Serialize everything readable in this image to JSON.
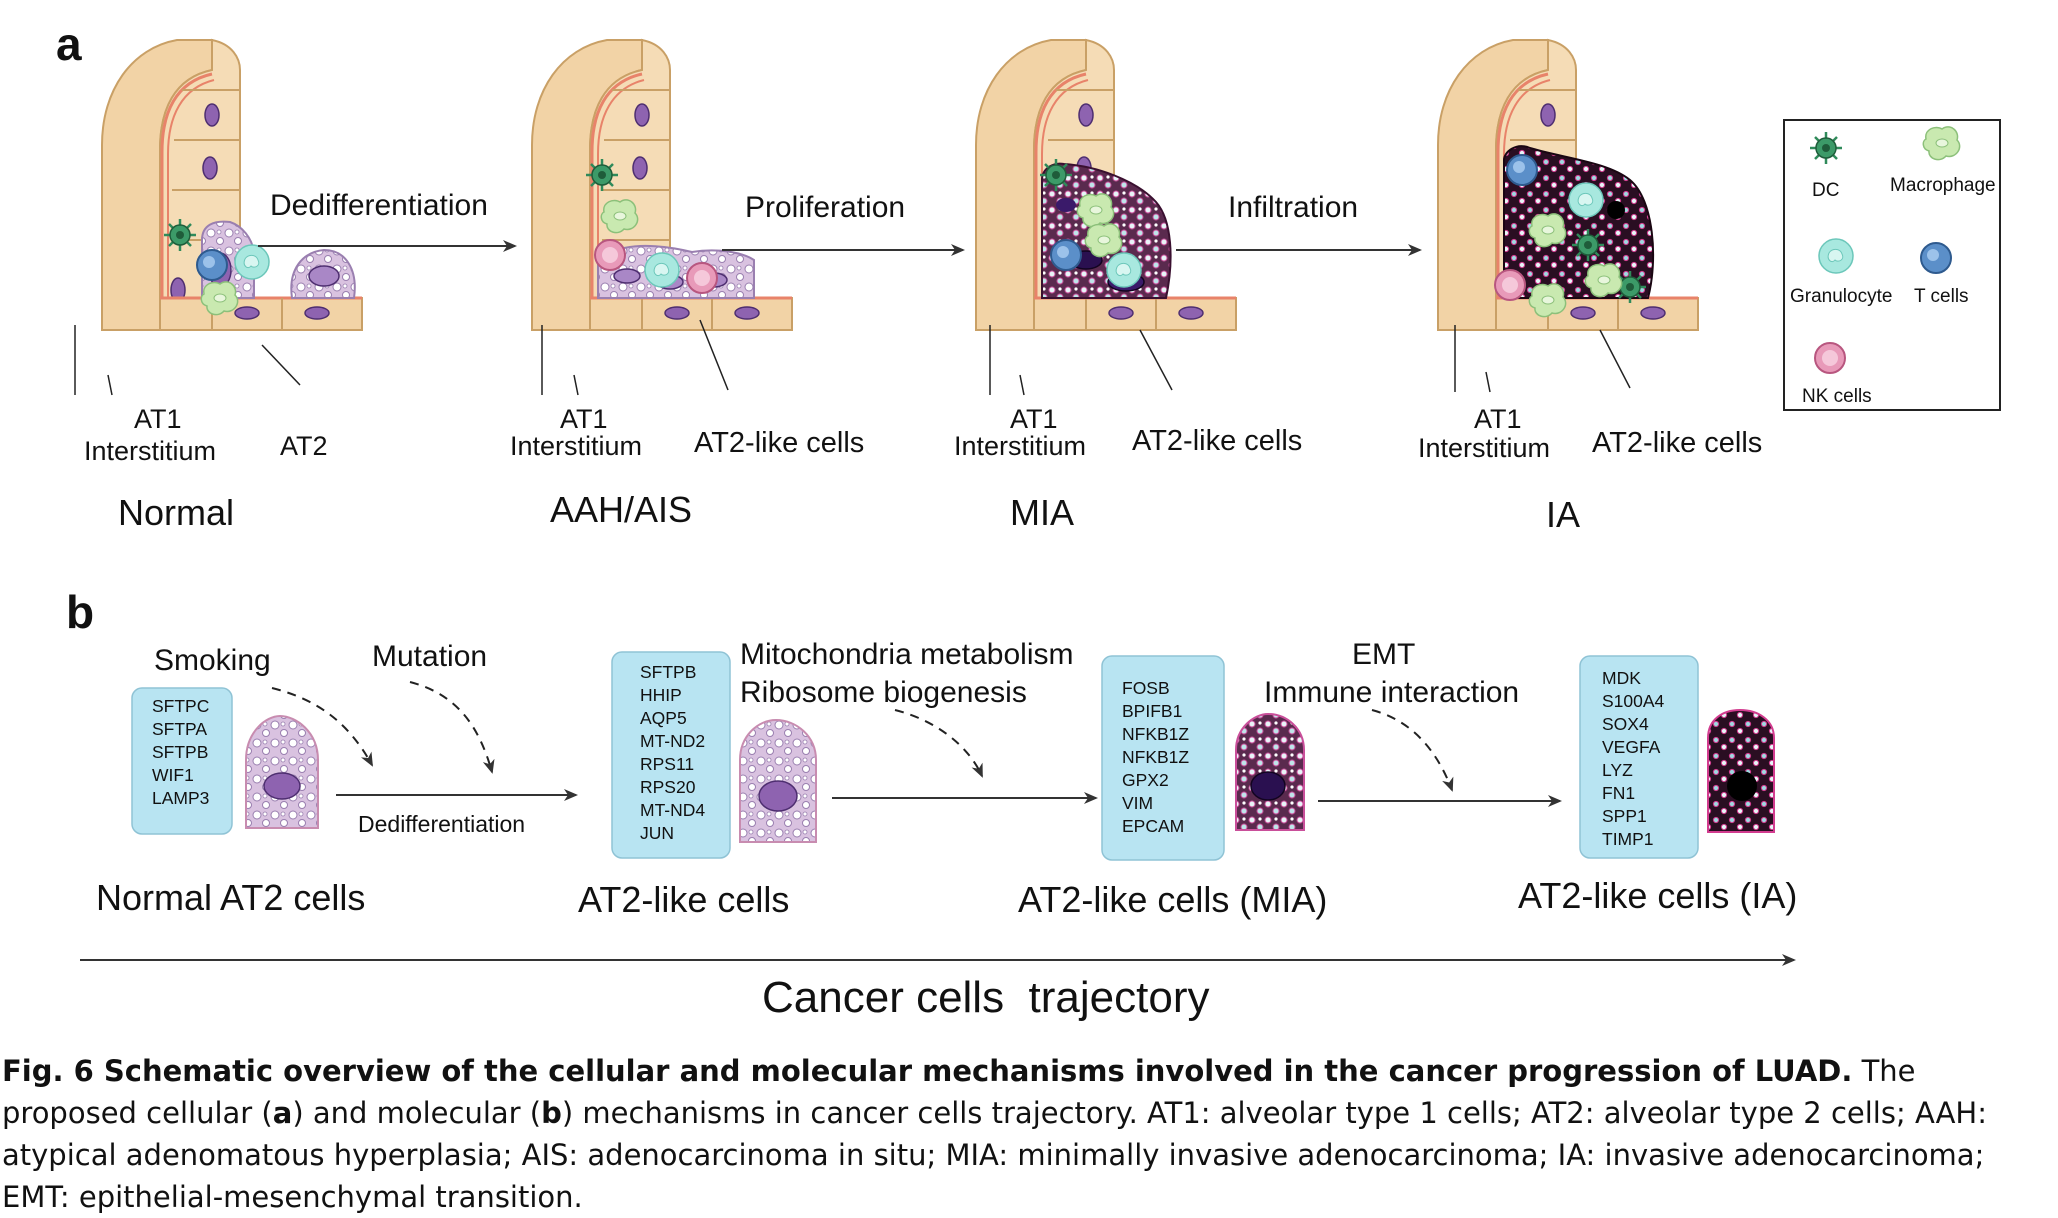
{
  "panel_a": {
    "label": "a",
    "stages": [
      {
        "name": "Normal",
        "at1": "AT1",
        "interstitium": "Interstitium",
        "cell": "AT2"
      },
      {
        "name": "AAH/AIS",
        "at1": "AT1",
        "interstitium": "Interstitium",
        "cell": "AT2-like cells"
      },
      {
        "name": "MIA",
        "at1": "AT1",
        "interstitium": "Interstitium",
        "cell": "AT2-like cells"
      },
      {
        "name": "IA",
        "at1": "AT1",
        "interstitium": "Interstitium",
        "cell": "AT2-like cells"
      }
    ],
    "transitions": [
      "Dedifferentiation",
      "Proliferation",
      "Infiltration"
    ],
    "legend": {
      "dc": "DC",
      "macrophage": "Macrophage",
      "granulocyte": "Granulocyte",
      "tcells": "T cells",
      "nkcells": "NK cells"
    }
  },
  "panel_b": {
    "label": "b",
    "factors": {
      "smoking": "Smoking",
      "mutation": "Mutation",
      "dedifferentiation": "Dedifferentiation"
    },
    "processes": {
      "mito": "Mitochondria metabolism",
      "ribo": "Ribosome biogenesis",
      "emt": "EMT",
      "immune": "Immune interaction"
    },
    "stages": [
      {
        "name": "Normal AT2 cells",
        "genes": [
          "SFTPC",
          "SFTPA",
          "SFTPB",
          "WIF1",
          "LAMP3"
        ]
      },
      {
        "name": "AT2-like cells",
        "genes": [
          "SFTPB",
          "HHIP",
          "AQP5",
          "MT-ND2",
          "RPS11",
          "RPS20",
          "MT-ND4",
          "JUN"
        ]
      },
      {
        "name": "AT2-like cells (MIA)",
        "genes": [
          "FOSB",
          "BPIFB1",
          "NFKB1Z",
          "NFKB1Z",
          "GPX2",
          "VIM",
          "EPCAM"
        ]
      },
      {
        "name": "AT2-like cells (IA)",
        "genes": [
          "MDK",
          "S100A4",
          "SOX4",
          "VEGFA",
          "LYZ",
          "FN1",
          "SPP1",
          "TIMP1"
        ]
      }
    ],
    "trajectory": "Cancer cells  trajectory"
  },
  "caption": {
    "bold": "Fig. 6 Schematic overview of the cellular and molecular mechanisms involved in the cancer progression of LUAD.",
    "p1": " The proposed cellular (",
    "a": "a",
    "p2": ") and molecular (",
    "b": "b",
    "p3": ") mechanisms in cancer cells trajectory. AT1: alveolar type 1 cells; AT2: alveolar type 2 cells; AAH: atypical adenomatous hyperplasia; AIS: adenocarcinoma in situ; MIA: minimally invasive adenocarcinoma; IA: invasive adenocarcinoma; EMT: epithelial-mesenchymal transition."
  },
  "colors": {
    "tissue": "#f2d3a6",
    "membrane": "#e8836a",
    "nucleus": "#8e63b0",
    "gene_box": "#b8e4f2",
    "dc": "#2f8a5a",
    "macrophage": "#c9e9b0",
    "granulocyte": "#a8e8df",
    "tcell": "#5b8fc9",
    "nkcell": "#e89ab9",
    "tumor": "#4a1b3a"
  }
}
